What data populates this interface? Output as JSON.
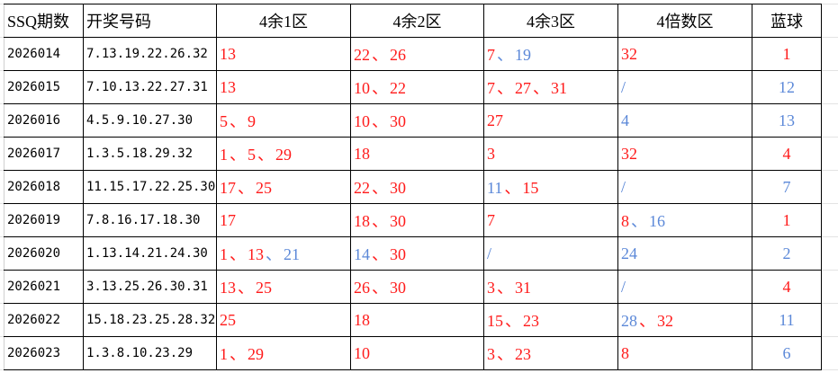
{
  "colors": {
    "red": "#ff1a1a",
    "blue": "#5b88d8",
    "text": "#000000",
    "grid": "#e3e3e3"
  },
  "separator": "、",
  "headers": [
    "SSQ期数",
    "开奖号码",
    "4余1区",
    "4余2区",
    "4余3区",
    "4倍数区",
    "蓝球"
  ],
  "rows": [
    {
      "period": "2026014",
      "numbers": "7.13.19.22.26.32",
      "z1": [
        [
          "13",
          "red"
        ]
      ],
      "z2": [
        [
          "22",
          "red"
        ],
        [
          "26",
          "red"
        ]
      ],
      "z3": [
        [
          "7",
          "red"
        ],
        [
          "19",
          "blue"
        ]
      ],
      "z0": [
        [
          "32",
          "red"
        ]
      ],
      "blue": [
        "1",
        "red"
      ]
    },
    {
      "period": "2026015",
      "numbers": "7.10.13.22.27.31",
      "z1": [
        [
          "13",
          "red"
        ]
      ],
      "z2": [
        [
          "10",
          "red"
        ],
        [
          "22",
          "red"
        ]
      ],
      "z3": [
        [
          "7",
          "red"
        ],
        [
          "27",
          "red"
        ],
        [
          "31",
          "red"
        ]
      ],
      "z0": [
        [
          "/",
          "blue"
        ]
      ],
      "blue": [
        "12",
        "blue"
      ]
    },
    {
      "period": "2026016",
      "numbers": "4.5.9.10.27.30",
      "z1": [
        [
          "5",
          "red"
        ],
        [
          "9",
          "red"
        ]
      ],
      "z2": [
        [
          "10",
          "red"
        ],
        [
          "30",
          "red"
        ]
      ],
      "z3": [
        [
          "27",
          "red"
        ]
      ],
      "z0": [
        [
          "4",
          "blue"
        ]
      ],
      "blue": [
        "13",
        "blue"
      ]
    },
    {
      "period": "2026017",
      "numbers": "1.3.5.18.29.32",
      "z1": [
        [
          "1",
          "red"
        ],
        [
          "5",
          "red"
        ],
        [
          "29",
          "red"
        ]
      ],
      "z2": [
        [
          "18",
          "red"
        ]
      ],
      "z3": [
        [
          "3",
          "red"
        ]
      ],
      "z0": [
        [
          "32",
          "red"
        ]
      ],
      "blue": [
        "4",
        "red"
      ]
    },
    {
      "period": "2026018",
      "numbers": "11.15.17.22.25.30",
      "z1": [
        [
          "17",
          "red"
        ],
        [
          "25",
          "red"
        ]
      ],
      "z2": [
        [
          "22",
          "red"
        ],
        [
          "30",
          "red"
        ]
      ],
      "z3": [
        [
          "11",
          "blue"
        ],
        [
          "15",
          "red"
        ]
      ],
      "z0": [
        [
          "/",
          "blue"
        ]
      ],
      "blue": [
        "7",
        "blue"
      ]
    },
    {
      "period": "2026019",
      "numbers": "7.8.16.17.18.30",
      "z1": [
        [
          "17",
          "red"
        ]
      ],
      "z2": [
        [
          "18",
          "red"
        ],
        [
          "30",
          "red"
        ]
      ],
      "z3": [
        [
          "7",
          "red"
        ]
      ],
      "z0": [
        [
          "8",
          "red"
        ],
        [
          "16",
          "blue"
        ]
      ],
      "blue": [
        "1",
        "red"
      ]
    },
    {
      "period": "2026020",
      "numbers": "1.13.14.21.24.30",
      "z1": [
        [
          "1",
          "red"
        ],
        [
          "13",
          "red"
        ],
        [
          "21",
          "blue"
        ]
      ],
      "z2": [
        [
          "14",
          "blue"
        ],
        [
          "30",
          "red"
        ]
      ],
      "z3": [
        [
          "/",
          "blue"
        ]
      ],
      "z0": [
        [
          "24",
          "blue"
        ]
      ],
      "blue": [
        "2",
        "blue"
      ]
    },
    {
      "period": "2026021",
      "numbers": "3.13.25.26.30.31",
      "z1": [
        [
          "13",
          "red"
        ],
        [
          "25",
          "red"
        ]
      ],
      "z2": [
        [
          "26",
          "red"
        ],
        [
          "30",
          "red"
        ]
      ],
      "z3": [
        [
          "3",
          "red"
        ],
        [
          "31",
          "red"
        ]
      ],
      "z0": [
        [
          "/",
          "blue"
        ]
      ],
      "blue": [
        "4",
        "red"
      ]
    },
    {
      "period": "2026022",
      "numbers": "15.18.23.25.28.32",
      "z1": [
        [
          "25",
          "red"
        ]
      ],
      "z2": [
        [
          "18",
          "red"
        ]
      ],
      "z3": [
        [
          "15",
          "red"
        ],
        [
          "23",
          "red"
        ]
      ],
      "z0": [
        [
          "28",
          "blue"
        ],
        [
          "32",
          "red"
        ]
      ],
      "blue": [
        "11",
        "blue"
      ]
    },
    {
      "period": "2026023",
      "numbers": "1.3.8.10.23.29",
      "z1": [
        [
          "1",
          "red"
        ],
        [
          "29",
          "red"
        ]
      ],
      "z2": [
        [
          "10",
          "red"
        ]
      ],
      "z3": [
        [
          "3",
          "red"
        ],
        [
          "23",
          "red"
        ]
      ],
      "z0": [
        [
          "8",
          "red"
        ]
      ],
      "blue": [
        "6",
        "blue"
      ]
    }
  ]
}
